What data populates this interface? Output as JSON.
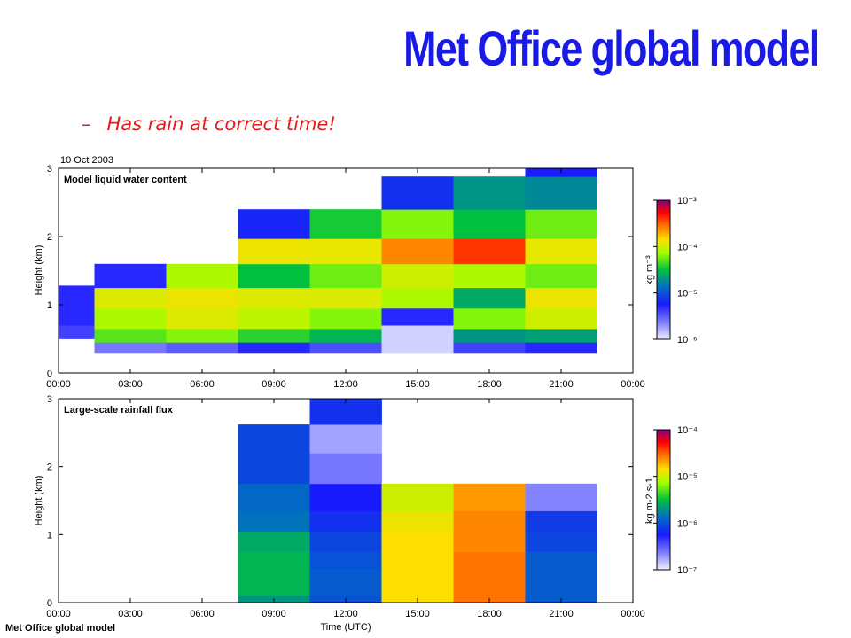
{
  "slide": {
    "title": "Met Office global model",
    "bullet": "Has rain at correct time!",
    "bullet_marker": "–",
    "title_color": "#1a1ae6",
    "bullet_color": "#e21c1c"
  },
  "figure": {
    "date_label": "10 Oct 2003",
    "footer_label": "Met Office global model",
    "xlabel": "Time (UTC)"
  },
  "chart_data": [
    {
      "type": "heatmap",
      "title": "Model liquid water content",
      "ylabel": "Height (km)",
      "xlabel": "",
      "xlim": [
        0,
        24
      ],
      "ylim": [
        0,
        3
      ],
      "x_ticks": [
        "00:00",
        "03:00",
        "06:00",
        "09:00",
        "12:00",
        "15:00",
        "18:00",
        "21:00",
        "00:00"
      ],
      "y_ticks": [
        "0",
        "1",
        "2",
        "3"
      ],
      "colorbar": {
        "label": "kg m⁻³",
        "scale": "log",
        "ticks": [
          "10⁻⁶",
          "10⁻⁵",
          "10⁻⁴",
          "10⁻³"
        ],
        "tick_exponents": [
          -6,
          -5,
          -4,
          -3
        ],
        "range_log10": [
          -6,
          -3
        ]
      },
      "cell_value_unit": "log10(kg m^-3)",
      "columns": [
        {
          "t0": 0.0,
          "t1": 1.5,
          "cells": [
            {
              "z0": 0.5,
              "z1": 0.7,
              "log_value": -5.4
            },
            {
              "z0": 0.7,
              "z1": 1.28,
              "log_value": -5.3
            }
          ]
        },
        {
          "t0": 1.5,
          "t1": 4.5,
          "cells": [
            {
              "z0": 0.3,
              "z1": 0.45,
              "log_value": -5.6
            },
            {
              "z0": 0.45,
              "z1": 0.65,
              "log_value": -4.3
            },
            {
              "z0": 0.65,
              "z1": 0.95,
              "log_value": -4.1
            },
            {
              "z0": 0.95,
              "z1": 1.25,
              "log_value": -3.95
            },
            {
              "z0": 1.25,
              "z1": 1.6,
              "log_value": -5.3
            }
          ]
        },
        {
          "t0": 4.5,
          "t1": 7.5,
          "cells": [
            {
              "z0": 0.3,
              "z1": 0.45,
              "log_value": -5.5
            },
            {
              "z0": 0.45,
              "z1": 0.65,
              "log_value": -4.2
            },
            {
              "z0": 0.65,
              "z1": 0.95,
              "log_value": -3.95
            },
            {
              "z0": 0.95,
              "z1": 1.25,
              "log_value": -3.9
            },
            {
              "z0": 1.25,
              "z1": 1.6,
              "log_value": -4.1
            }
          ]
        },
        {
          "t0": 7.5,
          "t1": 10.5,
          "cells": [
            {
              "z0": 0.3,
              "z1": 0.45,
              "log_value": -5.3
            },
            {
              "z0": 0.45,
              "z1": 0.65,
              "log_value": -4.4
            },
            {
              "z0": 0.65,
              "z1": 0.95,
              "log_value": -4.05
            },
            {
              "z0": 0.95,
              "z1": 1.25,
              "log_value": -3.95
            },
            {
              "z0": 1.25,
              "z1": 1.6,
              "log_value": -4.5
            },
            {
              "z0": 1.6,
              "z1": 1.97,
              "log_value": -3.9
            },
            {
              "z0": 1.97,
              "z1": 2.4,
              "log_value": -5.2
            }
          ]
        },
        {
          "t0": 10.5,
          "t1": 13.5,
          "cells": [
            {
              "z0": 0.3,
              "z1": 0.45,
              "log_value": -5.45
            },
            {
              "z0": 0.45,
              "z1": 0.65,
              "log_value": -4.55
            },
            {
              "z0": 0.65,
              "z1": 0.95,
              "log_value": -4.2
            },
            {
              "z0": 0.95,
              "z1": 1.25,
              "log_value": -3.95
            },
            {
              "z0": 1.25,
              "z1": 1.6,
              "log_value": -4.25
            },
            {
              "z0": 1.6,
              "z1": 1.97,
              "log_value": -3.92
            },
            {
              "z0": 1.97,
              "z1": 2.4,
              "log_value": -4.45
            }
          ]
        },
        {
          "t0": 13.5,
          "t1": 16.5,
          "cells": [
            {
              "z0": 0.3,
              "z1": 0.7,
              "log_value": -5.9
            },
            {
              "z0": 0.7,
              "z1": 0.95,
              "log_value": -5.3
            },
            {
              "z0": 0.95,
              "z1": 1.25,
              "log_value": -4.1
            },
            {
              "z0": 1.25,
              "z1": 1.6,
              "log_value": -4.0
            },
            {
              "z0": 1.6,
              "z1": 1.97,
              "log_value": -3.6
            },
            {
              "z0": 1.97,
              "z1": 2.4,
              "log_value": -4.2
            },
            {
              "z0": 2.4,
              "z1": 2.88,
              "log_value": -5.15
            }
          ]
        },
        {
          "t0": 16.5,
          "t1": 19.5,
          "cells": [
            {
              "z0": 0.3,
              "z1": 0.45,
              "log_value": -5.4
            },
            {
              "z0": 0.45,
              "z1": 0.65,
              "log_value": -4.7
            },
            {
              "z0": 0.65,
              "z1": 0.95,
              "log_value": -4.2
            },
            {
              "z0": 0.95,
              "z1": 1.25,
              "log_value": -4.6
            },
            {
              "z0": 1.25,
              "z1": 1.6,
              "log_value": -4.1
            },
            {
              "z0": 1.6,
              "z1": 1.97,
              "log_value": -3.4
            },
            {
              "z0": 1.97,
              "z1": 2.4,
              "log_value": -4.5
            },
            {
              "z0": 2.4,
              "z1": 2.88,
              "log_value": -4.7
            }
          ]
        },
        {
          "t0": 19.5,
          "t1": 22.5,
          "cells": [
            {
              "z0": 0.3,
              "z1": 0.45,
              "log_value": -5.3
            },
            {
              "z0": 0.45,
              "z1": 0.65,
              "log_value": -4.65
            },
            {
              "z0": 0.65,
              "z1": 0.95,
              "log_value": -4.0
            },
            {
              "z0": 0.95,
              "z1": 1.25,
              "log_value": -3.9
            },
            {
              "z0": 1.25,
              "z1": 1.6,
              "log_value": -4.25
            },
            {
              "z0": 1.6,
              "z1": 1.97,
              "log_value": -3.92
            },
            {
              "z0": 1.97,
              "z1": 2.4,
              "log_value": -4.25
            },
            {
              "z0": 2.4,
              "z1": 2.88,
              "log_value": -4.75
            },
            {
              "z0": 2.88,
              "z1": 3.0,
              "log_value": -5.25
            }
          ]
        }
      ]
    },
    {
      "type": "heatmap",
      "title": "Large-scale rainfall flux",
      "ylabel": "Height (km)",
      "xlabel": "Time (UTC)",
      "xlim": [
        0,
        24
      ],
      "ylim": [
        0,
        3
      ],
      "x_ticks": [
        "00:00",
        "03:00",
        "06:00",
        "09:00",
        "12:00",
        "15:00",
        "18:00",
        "21:00",
        "00:00"
      ],
      "y_ticks": [
        "0",
        "1",
        "2",
        "3"
      ],
      "colorbar": {
        "label": "kg m-2 s-1",
        "scale": "log",
        "ticks": [
          "10⁻⁷",
          "10⁻⁶",
          "10⁻⁵",
          "10⁻⁴"
        ],
        "tick_exponents": [
          -7,
          -6,
          -5,
          -4
        ],
        "range_log10": [
          -7,
          -4
        ]
      },
      "cell_value_unit": "log10(kg m^-2 s^-1)",
      "columns": [
        {
          "t0": 7.5,
          "t1": 10.5,
          "cells": [
            {
              "z0": 0.0,
              "z1": 0.1,
              "log_value": -5.7
            },
            {
              "z0": 0.1,
              "z1": 0.75,
              "log_value": -5.55
            },
            {
              "z0": 0.75,
              "z1": 1.05,
              "log_value": -5.6
            },
            {
              "z0": 1.05,
              "z1": 1.35,
              "log_value": -5.85
            },
            {
              "z0": 1.35,
              "z1": 1.75,
              "log_value": -5.9
            },
            {
              "z0": 1.75,
              "z1": 2.62,
              "log_value": -6.05
            }
          ]
        },
        {
          "t0": 10.5,
          "t1": 13.5,
          "cells": [
            {
              "z0": 0.0,
              "z1": 0.1,
              "log_value": -6.0
            },
            {
              "z0": 0.1,
              "z1": 0.5,
              "log_value": -5.95
            },
            {
              "z0": 0.5,
              "z1": 0.75,
              "log_value": -6.0
            },
            {
              "z0": 0.75,
              "z1": 1.05,
              "log_value": -6.05
            },
            {
              "z0": 1.05,
              "z1": 1.35,
              "log_value": -6.15
            },
            {
              "z0": 1.35,
              "z1": 1.75,
              "log_value": -6.25
            },
            {
              "z0": 1.75,
              "z1": 2.2,
              "log_value": -6.6
            },
            {
              "z0": 2.2,
              "z1": 2.62,
              "log_value": -6.75
            },
            {
              "z0": 2.62,
              "z1": 3.0,
              "log_value": -6.15
            }
          ]
        },
        {
          "t0": 13.5,
          "t1": 16.5,
          "cells": [
            {
              "z0": 0.0,
              "z1": 1.05,
              "log_value": -4.85
            },
            {
              "z0": 1.05,
              "z1": 1.35,
              "log_value": -4.9
            },
            {
              "z0": 1.35,
              "z1": 1.75,
              "log_value": -5.0
            }
          ]
        },
        {
          "t0": 16.5,
          "t1": 19.5,
          "cells": [
            {
              "z0": 0.0,
              "z1": 0.75,
              "log_value": -4.55
            },
            {
              "z0": 0.75,
              "z1": 1.35,
              "log_value": -4.6
            },
            {
              "z0": 1.35,
              "z1": 1.75,
              "log_value": -4.65
            }
          ]
        },
        {
          "t0": 19.5,
          "t1": 22.5,
          "cells": [
            {
              "z0": 0.0,
              "z1": 0.75,
              "log_value": -5.95
            },
            {
              "z0": 0.75,
              "z1": 1.05,
              "log_value": -6.05
            },
            {
              "z0": 1.05,
              "z1": 1.35,
              "log_value": -6.1
            },
            {
              "z0": 1.35,
              "z1": 1.75,
              "log_value": -6.65
            }
          ]
        }
      ]
    }
  ]
}
